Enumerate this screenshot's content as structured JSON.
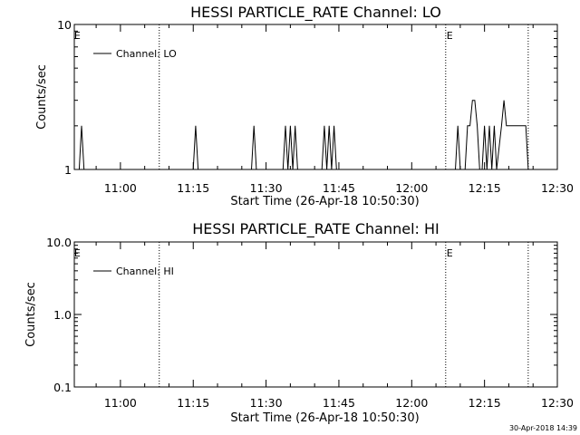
{
  "footer": {
    "timestamp": "30-Apr-2018 14:39"
  },
  "chart_data": [
    {
      "type": "line",
      "title": "HESSI PARTICLE_RATE Channel: LO",
      "xlabel": "Start Time (26-Apr-18 10:50:30)",
      "ylabel": "Counts/sec",
      "xlim": [
        "10:50:30",
        "12:30:00"
      ],
      "ylim": [
        1,
        10
      ],
      "yscale": "log",
      "x_ticks": [
        "11:00",
        "11:15",
        "11:30",
        "11:45",
        "12:00",
        "12:15",
        "12:30"
      ],
      "y_ticks": [
        "1",
        "10"
      ],
      "legend": {
        "entries": [
          "Channel: LO"
        ],
        "position": "top-left"
      },
      "event_markers": [
        {
          "time": "10:50:40",
          "label": "E"
        },
        {
          "time": "11:08",
          "label": ""
        },
        {
          "time": "12:07",
          "label": "E"
        },
        {
          "time": "12:24",
          "label": ""
        }
      ],
      "series": [
        {
          "name": "Channel: LO",
          "points": [
            [
              "10:50:30",
              1
            ],
            [
              "10:51:30",
              1
            ],
            [
              "10:52:00",
              2
            ],
            [
              "10:52:30",
              1
            ],
            [
              "11:15:00",
              1
            ],
            [
              "11:15:30",
              2
            ],
            [
              "11:16:00",
              1
            ],
            [
              "11:27:00",
              1
            ],
            [
              "11:27:30",
              2
            ],
            [
              "11:28:00",
              1
            ],
            [
              "11:33:30",
              1
            ],
            [
              "11:34:00",
              2
            ],
            [
              "11:34:30",
              1
            ],
            [
              "11:35:00",
              2
            ],
            [
              "11:35:30",
              1
            ],
            [
              "11:36:00",
              2
            ],
            [
              "11:36:30",
              1
            ],
            [
              "11:41:30",
              1
            ],
            [
              "11:42:00",
              2
            ],
            [
              "11:42:30",
              1
            ],
            [
              "11:43:00",
              2
            ],
            [
              "11:43:30",
              1
            ],
            [
              "11:44:00",
              2
            ],
            [
              "11:44:30",
              1
            ],
            [
              "12:09:00",
              1
            ],
            [
              "12:09:30",
              2
            ],
            [
              "12:10:00",
              1
            ],
            [
              "12:11:00",
              1
            ],
            [
              "12:11:30",
              2
            ],
            [
              "12:12:00",
              2
            ],
            [
              "12:12:30",
              3
            ],
            [
              "12:13:00",
              3
            ],
            [
              "12:13:30",
              2
            ],
            [
              "12:14:00",
              1
            ],
            [
              "12:14:30",
              1
            ],
            [
              "12:15:00",
              2
            ],
            [
              "12:15:30",
              1
            ],
            [
              "12:16:00",
              2
            ],
            [
              "12:16:30",
              1
            ],
            [
              "12:17:00",
              2
            ],
            [
              "12:17:30",
              1
            ],
            [
              "12:18:30",
              2
            ],
            [
              "12:19:00",
              3
            ],
            [
              "12:19:30",
              2
            ],
            [
              "12:23:30",
              2
            ],
            [
              "12:24:00",
              1
            ],
            [
              "12:30:00",
              1
            ]
          ]
        }
      ]
    },
    {
      "type": "line",
      "title": "HESSI PARTICLE_RATE Channel: HI",
      "xlabel": "Start Time (26-Apr-18 10:50:30)",
      "ylabel": "Counts/sec",
      "xlim": [
        "10:50:30",
        "12:30:00"
      ],
      "ylim": [
        0.1,
        10
      ],
      "yscale": "log",
      "x_ticks": [
        "11:00",
        "11:15",
        "11:30",
        "11:45",
        "12:00",
        "12:15",
        "12:30"
      ],
      "y_ticks": [
        "0.1",
        "1.0",
        "10.0"
      ],
      "legend": {
        "entries": [
          "Channel: HI"
        ],
        "position": "top-left"
      },
      "event_markers": [
        {
          "time": "10:50:40",
          "label": "E"
        },
        {
          "time": "11:08",
          "label": ""
        },
        {
          "time": "12:07",
          "label": "E"
        },
        {
          "time": "12:24",
          "label": ""
        }
      ],
      "series": [
        {
          "name": "Channel: HI",
          "points": []
        }
      ]
    }
  ]
}
